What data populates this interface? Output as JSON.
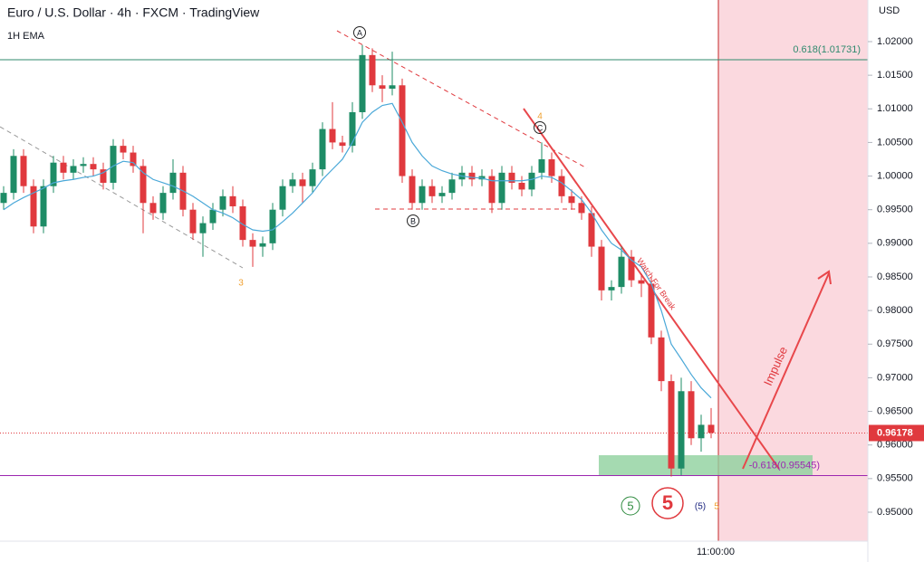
{
  "header": {
    "title": "Euro / U.S. Dollar · 4h · FXCM · TradingView",
    "indicator": "1H EMA"
  },
  "chart_data": {
    "type": "candlestick",
    "y_unit": "USD",
    "open": [
      0.996,
      0.9975,
      1.003,
      0.9985,
      0.9925,
      0.9985,
      1.002,
      1.0005,
      1.0015,
      1.0018,
      1.001,
      0.999,
      1.0045,
      1.0035,
      1.0015,
      0.996,
      0.9945,
      0.9975,
      1.0005,
      0.995,
      0.9915,
      0.993,
      0.995,
      0.997,
      0.9955,
      0.9905,
      0.9895,
      0.99,
      0.995,
      0.9985,
      0.9995,
      0.9985,
      1.001,
      1.007,
      1.005,
      1.0045,
      1.0095,
      1.018,
      1.0135,
      1.013,
      1.0135,
      1.0,
      0.996,
      0.9985,
      0.997,
      0.9975,
      0.9995,
      1.0005,
      0.9995,
      1.0,
      0.996,
      1.0005,
      0.999,
      0.998,
      1.0005,
      1.0025,
      1.0,
      0.997,
      0.996,
      0.9945,
      0.9895,
      0.983,
      0.9835,
      0.988,
      0.9845,
      0.984,
      0.976,
      0.9695,
      0.9565,
      0.968,
      0.961,
      0.963
    ],
    "high": [
      0.9985,
      1.004,
      1.004,
      0.9995,
      0.9995,
      1.003,
      1.003,
      1.0025,
      1.0028,
      1.0028,
      1.002,
      1.0055,
      1.0055,
      1.0045,
      1.0025,
      0.997,
      0.9985,
      1.0025,
      1.0015,
      0.996,
      0.994,
      0.996,
      0.998,
      0.9985,
      0.9965,
      0.9915,
      0.991,
      0.996,
      0.9995,
      1.0005,
      1.0005,
      1.002,
      1.008,
      1.011,
      1.006,
      1.011,
      1.0195,
      1.019,
      1.015,
      1.0185,
      1.0145,
      1.001,
      0.9995,
      0.9995,
      0.9985,
      1.0005,
      1.0015,
      1.0015,
      1.001,
      1.001,
      1.0015,
      1.0015,
      1.0,
      1.0015,
      1.005,
      1.0035,
      1.001,
      0.998,
      0.997,
      0.9955,
      0.9905,
      0.9845,
      0.9895,
      0.989,
      0.9855,
      0.985,
      0.977,
      0.9705,
      0.97,
      0.9695,
      0.9645,
      0.9655
    ],
    "low": [
      0.995,
      0.9965,
      0.9975,
      0.9915,
      0.9915,
      0.9975,
      0.9995,
      0.9995,
      1.0005,
      1.0,
      0.998,
      0.998,
      1.0025,
      1.0005,
      0.9915,
      0.9935,
      0.9935,
      0.9965,
      0.994,
      0.9905,
      0.988,
      0.992,
      0.994,
      0.9945,
      0.9895,
      0.9865,
      0.988,
      0.989,
      0.994,
      0.9975,
      0.996,
      0.9975,
      1.0,
      1.004,
      1.0035,
      1.0035,
      1.0085,
      1.0125,
      1.011,
      1.012,
      0.999,
      0.995,
      0.995,
      0.996,
      0.996,
      0.9965,
      0.9985,
      0.9985,
      0.9985,
      0.9945,
      0.995,
      0.998,
      0.997,
      0.997,
      0.9995,
      0.999,
      0.996,
      0.995,
      0.9935,
      0.988,
      0.9815,
      0.9815,
      0.9825,
      0.9835,
      0.982,
      0.975,
      0.968,
      0.9553,
      0.9555,
      0.96,
      0.959,
      0.961
    ],
    "close": [
      0.9975,
      1.003,
      0.9985,
      0.9925,
      0.9985,
      1.002,
      1.0005,
      1.0015,
      1.0018,
      1.001,
      0.999,
      1.0045,
      1.0035,
      1.0015,
      0.996,
      0.9945,
      0.9975,
      1.0005,
      0.995,
      0.9915,
      0.993,
      0.995,
      0.997,
      0.9955,
      0.9905,
      0.9895,
      0.99,
      0.995,
      0.9985,
      0.9995,
      0.9985,
      1.001,
      1.007,
      1.005,
      1.0045,
      1.0095,
      1.018,
      1.0135,
      1.013,
      1.0135,
      1.0,
      0.996,
      0.9985,
      0.997,
      0.9975,
      0.9995,
      1.0005,
      0.9995,
      1.0,
      0.996,
      1.0005,
      0.999,
      0.998,
      1.0005,
      1.0025,
      1.0,
      0.997,
      0.996,
      0.9945,
      0.9895,
      0.983,
      0.9835,
      0.988,
      0.9845,
      0.984,
      0.976,
      0.9695,
      0.9565,
      0.968,
      0.961,
      0.963,
      0.9618
    ],
    "up_color": "#1e8c66",
    "down_color": "#e0393e",
    "ema": {
      "color": "#4aa8d8",
      "values": [
        0.995,
        0.996,
        0.9968,
        0.9975,
        0.9982,
        0.999,
        0.9993,
        0.9995,
        0.9998,
        1.0,
        1.0005,
        1.0015,
        1.0022,
        1.002,
        1.0005,
        0.9995,
        0.999,
        0.9985,
        0.9978,
        0.997,
        0.996,
        0.995,
        0.9945,
        0.9938,
        0.9928,
        0.992,
        0.9918,
        0.992,
        0.9932,
        0.9945,
        0.996,
        0.9975,
        0.9995,
        1.001,
        1.0025,
        1.005,
        1.008,
        1.0095,
        1.0105,
        1.0108,
        1.008,
        1.005,
        1.003,
        1.0015,
        1.0008,
        1.0003,
        1.0,
        0.9998,
        0.9997,
        0.9993,
        0.9993,
        0.9993,
        0.9993,
        0.9995,
        1.0,
        0.9998,
        0.999,
        0.9978,
        0.9965,
        0.9945,
        0.992,
        0.99,
        0.989,
        0.9875,
        0.9865,
        0.984,
        0.98,
        0.975,
        0.9728,
        0.9705,
        0.9685,
        0.967
      ]
    },
    "ylim": [
      0.94569,
      1.02619
    ],
    "yticks": [
      {
        "value": 1.02,
        "label": "1.02000"
      },
      {
        "value": 1.015,
        "label": "1.01500"
      },
      {
        "value": 1.01,
        "label": "1.01000"
      },
      {
        "value": 1.005,
        "label": "1.00500"
      },
      {
        "value": 1.0,
        "label": "1.00000"
      },
      {
        "value": 0.995,
        "label": "0.99500"
      },
      {
        "value": 0.99,
        "label": "0.99000"
      },
      {
        "value": 0.985,
        "label": "0.98500"
      },
      {
        "value": 0.98,
        "label": "0.98000"
      },
      {
        "value": 0.975,
        "label": "0.97500"
      },
      {
        "value": 0.97,
        "label": "0.97000"
      },
      {
        "value": 0.965,
        "label": "0.96500"
      },
      {
        "value": 0.96,
        "label": "0.96000"
      },
      {
        "value": 0.955,
        "label": "0.95500"
      },
      {
        "value": 0.95,
        "label": "0.95000"
      }
    ],
    "last_price": 0.96178,
    "last_price_color": "#e0393e",
    "levels": [
      {
        "label": "0.618(1.01731)",
        "value": 1.01731,
        "color": "#2f8a6e"
      },
      {
        "label": "-0.618(0.95545)",
        "value": 0.95545,
        "color": "#9c27b0"
      }
    ],
    "x_label": "11:00:00",
    "annotations": [
      "A",
      "B",
      "C",
      "3",
      "4",
      "5",
      "5",
      "(5)",
      "5",
      "Watch For Break",
      "Impulse"
    ]
  }
}
